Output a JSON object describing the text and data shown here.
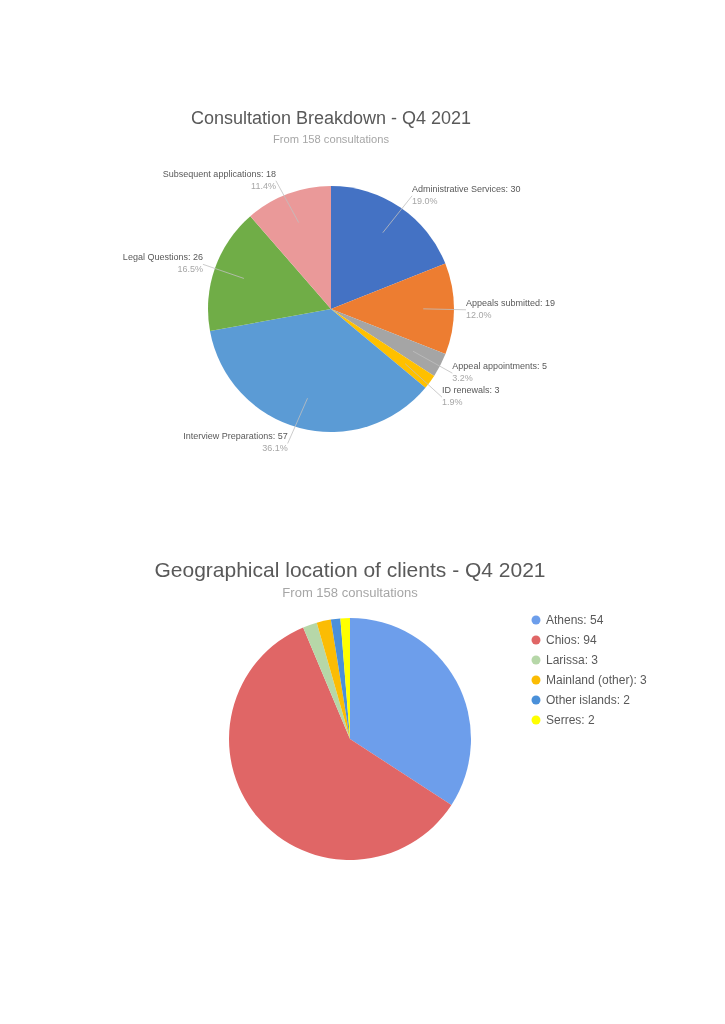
{
  "chart_data": [
    {
      "type": "pie",
      "title": "Consultation Breakdown - Q4 2021",
      "subtitle": "From 158 consultations",
      "categories": [
        "Administrative Services: 30",
        "Appeals submitted: 19",
        "Appeal appointments: 5",
        "ID renewals: 3",
        "Interview Preparations: 57",
        "Legal Questions: 26",
        "Subsequent applications: 18"
      ],
      "values": [
        19.0,
        12.0,
        3.2,
        1.9,
        36.1,
        16.5,
        11.4
      ],
      "colors": [
        "#4472c4",
        "#ed7d31",
        "#a5a5a5",
        "#ffc000",
        "#5b9bd5",
        "#70ad47",
        "#ea9999"
      ],
      "value_labels": [
        "19.0%",
        "12.0%",
        "3.2%",
        "1.9%",
        "36.1%",
        "16.5%",
        "11.4%"
      ]
    },
    {
      "type": "pie",
      "title": "Geographical location of clients - Q4 2021",
      "subtitle": "From 158 consultations",
      "categories": [
        "Athens: 54",
        "Chios: 94",
        "Larissa: 3",
        "Mainland (other): 3",
        "Other islands: 2",
        "Serres: 2"
      ],
      "values": [
        54,
        94,
        3,
        3,
        2,
        2
      ],
      "colors": [
        "#6d9eeb",
        "#e06666",
        "#b6d7a8",
        "#fbbc04",
        "#4a90d9",
        "#ffff00"
      ],
      "legend": "right"
    }
  ]
}
